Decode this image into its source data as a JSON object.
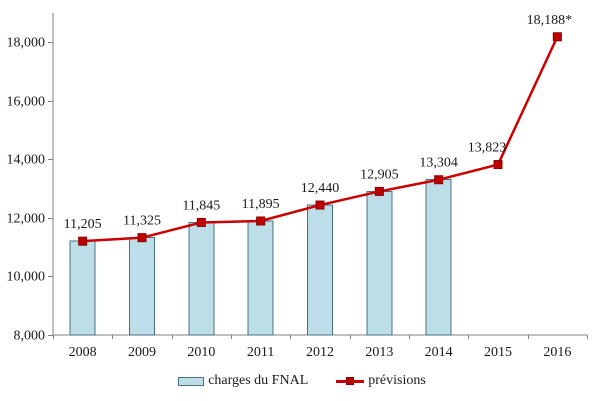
{
  "chart_data": {
    "type": "bar",
    "title": "",
    "xlabel": "",
    "ylabel": "",
    "categories": [
      "2008",
      "2009",
      "2010",
      "2011",
      "2012",
      "2013",
      "2014",
      "2015",
      "2016"
    ],
    "series": [
      {
        "name": "charges du FNAL",
        "kind": "bar",
        "values": [
          11205,
          11325,
          11845,
          11895,
          12440,
          12905,
          13304,
          null,
          null
        ]
      },
      {
        "name": "prévisions",
        "kind": "line",
        "values": [
          11205,
          11325,
          11845,
          11895,
          12440,
          12905,
          13304,
          13823,
          18188
        ]
      }
    ],
    "data_labels": [
      "11,205",
      "11,325",
      "11,845",
      "11,895",
      "12,440",
      "12,905",
      "13,304",
      "13,823",
      "18,188*"
    ],
    "ylim": [
      8000,
      19000
    ],
    "yticks": [
      8000,
      10000,
      12000,
      14000,
      16000,
      18000
    ],
    "ytick_labels": [
      "8,000",
      "10,000",
      "12,000",
      "14,000",
      "16,000",
      "18,000"
    ],
    "grid": false,
    "legend_position": "bottom",
    "colors": {
      "bar_fill": "#bddde9",
      "bar_border": "#4a7183",
      "line": "#cc0000",
      "marker_fill": "#bf0000",
      "marker_border": "#850000",
      "axis": "#808080",
      "text": "#1a1a1a"
    }
  }
}
